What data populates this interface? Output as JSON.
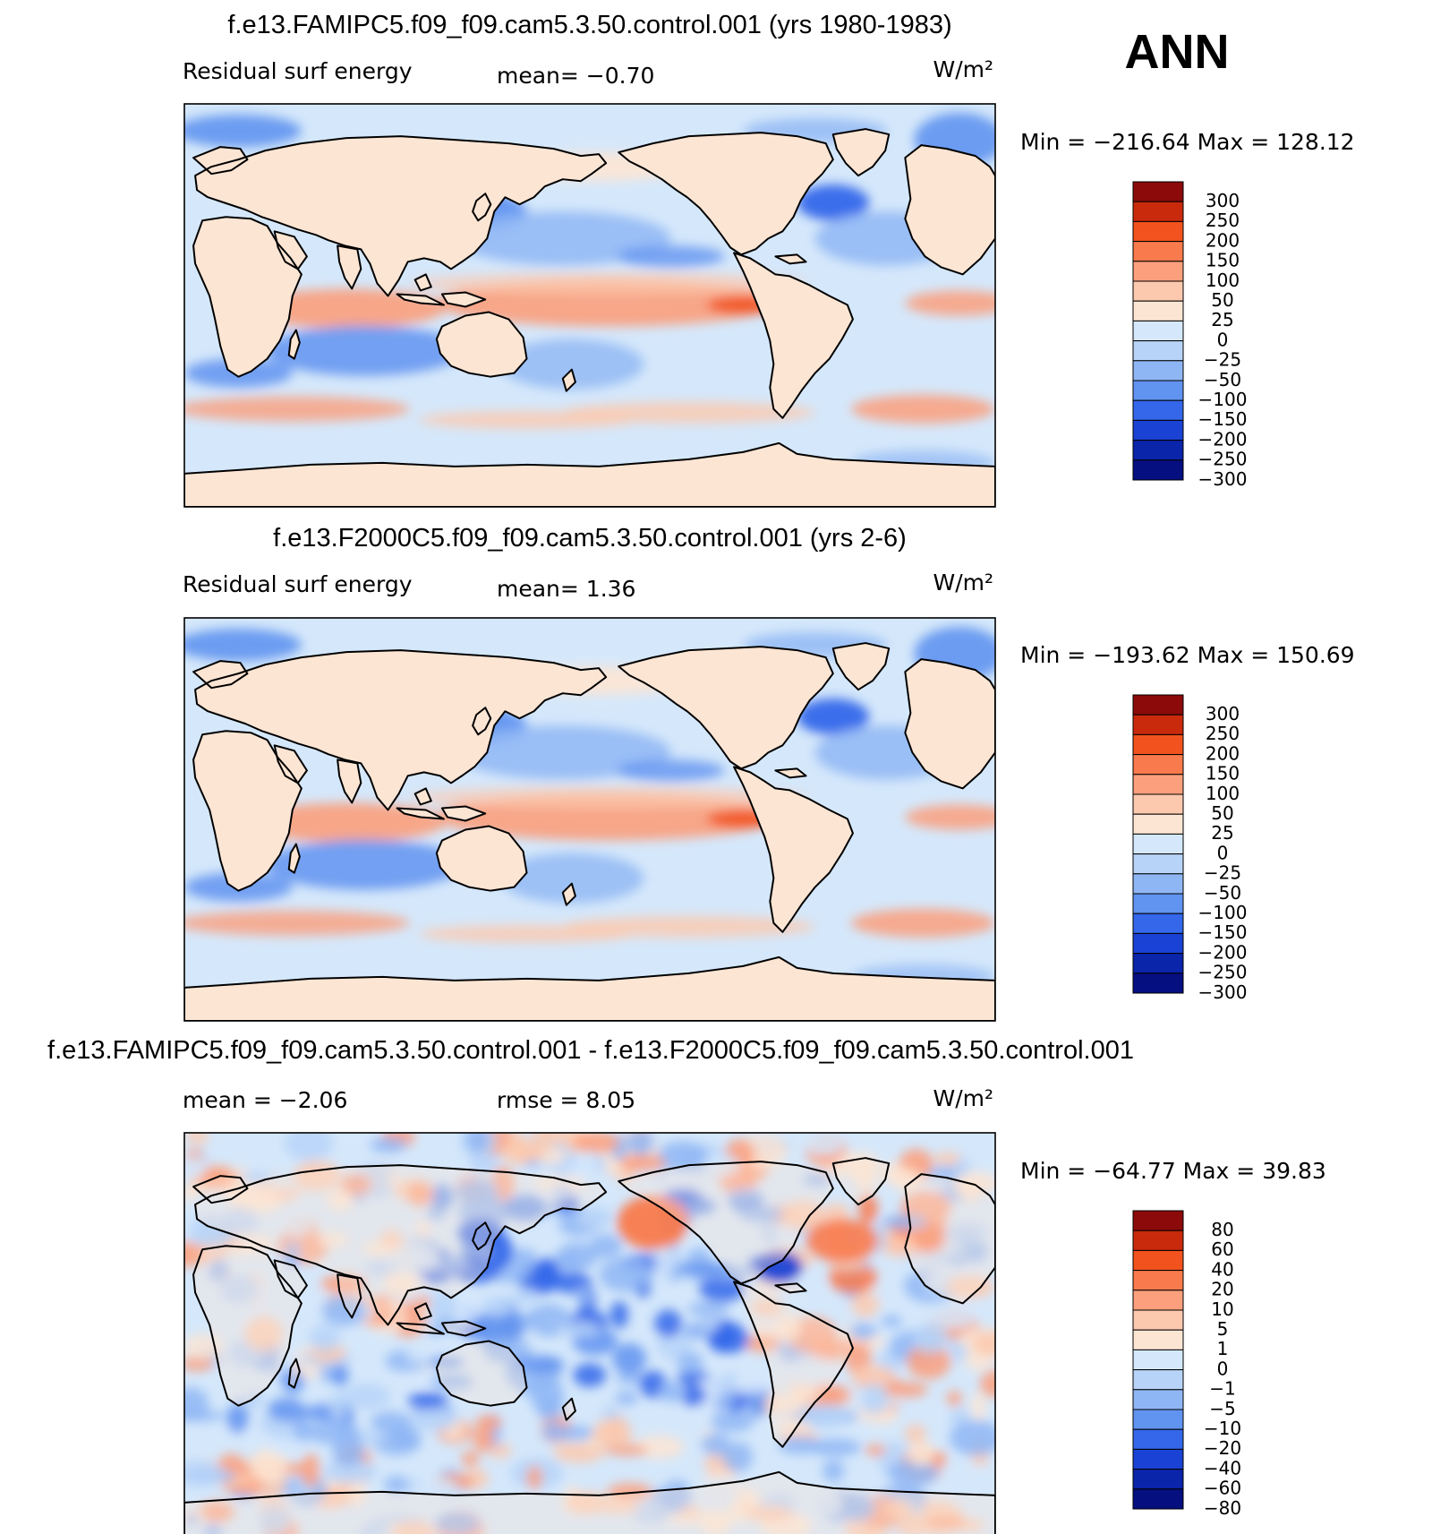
{
  "season": "ANN",
  "units": "W/m²",
  "colors": {
    "warm": [
      "#fde5d4",
      "#fdc9ae",
      "#fb9f7c",
      "#f97a4c",
      "#f2521d",
      "#c92a0c",
      "#8c0a0a"
    ],
    "cool": [
      "#d5e8fb",
      "#b7d4f8",
      "#8fb6f4",
      "#6193f0",
      "#3467ea",
      "#1a42d4",
      "#0a24aa",
      "#050f80"
    ],
    "land": "#fde5d4",
    "zero": "#d5e8fb"
  },
  "panels": [
    {
      "title": "f.e13.FAMIPC5.f09_f09.cam5.3.50.control.001 (yrs 1980-1983)",
      "left_label": "Residual surf energy",
      "center_label": "mean=   −0.70",
      "units": "W/m²",
      "minmax": "Min = −216.64 Max = 128.12",
      "colorbar_labels": [
        "300",
        "250",
        "200",
        "150",
        "100",
        "50",
        "25",
        "0",
        "−25",
        "−50",
        "−100",
        "−150",
        "−200",
        "−250",
        "−300"
      ],
      "pattern": "model"
    },
    {
      "title": "f.e13.F2000C5.f09_f09.cam5.3.50.control.001 (yrs 2-6)",
      "left_label": "Residual surf energy",
      "center_label": "mean=    1.36",
      "units": "W/m²",
      "minmax": "Min = −193.62 Max = 150.69",
      "colorbar_labels": [
        "300",
        "250",
        "200",
        "150",
        "100",
        "50",
        "25",
        "0",
        "−25",
        "−50",
        "−100",
        "−150",
        "−200",
        "−250",
        "−300"
      ],
      "pattern": "model"
    },
    {
      "title": "f.e13.FAMIPC5.f09_f09.cam5.3.50.control.001 - f.e13.F2000C5.f09_f09.cam5.3.50.control.001",
      "left_label": "mean =   −2.06",
      "center_label": "rmse =    8.05",
      "units": "W/m²",
      "minmax": "Min = −64.77 Max =  39.83",
      "colorbar_labels": [
        "80",
        "60",
        "40",
        "20",
        "10",
        "5",
        "1",
        "0",
        "−1",
        "−5",
        "−10",
        "−20",
        "−40",
        "−60",
        "−80"
      ],
      "pattern": "diff"
    }
  ]
}
